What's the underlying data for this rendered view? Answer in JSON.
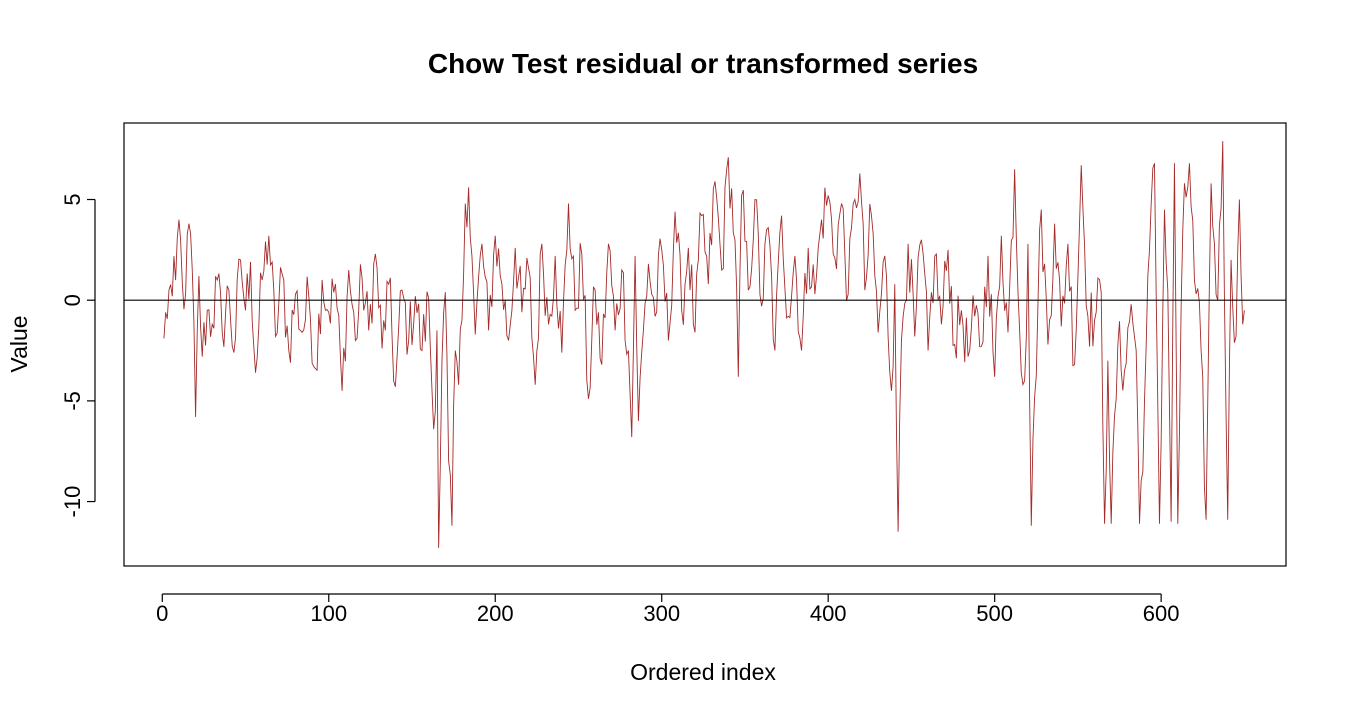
{
  "chart_data": {
    "type": "line",
    "title": "Chow Test residual or transformed series",
    "xlabel": "Ordered index",
    "ylabel": "Value",
    "xlim": [
      -23,
      675
    ],
    "ylim": [
      -13.2,
      8.8
    ],
    "x_ticks": [
      0,
      100,
      200,
      300,
      400,
      500,
      600
    ],
    "x_tick_labels": [
      "0",
      "100",
      "200",
      "300",
      "400",
      "500",
      "600"
    ],
    "y_ticks": [
      5,
      0,
      -5,
      -10
    ],
    "y_tick_labels": [
      "5",
      "0",
      "-5",
      "-10"
    ],
    "reference_line": 0,
    "series": [
      {
        "color": "#a52a2a",
        "x_start": 1,
        "x_step": 1,
        "anchors": [
          [
            1,
            -1.9
          ],
          [
            4,
            0.5
          ],
          [
            6,
            0.2
          ],
          [
            8,
            1.0
          ],
          [
            10,
            4.0
          ],
          [
            12,
            0.9
          ],
          [
            14,
            0.3
          ],
          [
            16,
            3.8
          ],
          [
            18,
            1.5
          ],
          [
            20,
            -5.8
          ],
          [
            22,
            1.2
          ],
          [
            24,
            -2.8
          ],
          [
            27,
            -0.5
          ],
          [
            30,
            -1.2
          ],
          [
            33,
            1.0
          ],
          [
            36,
            -1.6
          ],
          [
            40,
            0.5
          ],
          [
            43,
            -2.6
          ],
          [
            47,
            2.0
          ],
          [
            50,
            -0.5
          ],
          [
            53,
            1.9
          ],
          [
            56,
            -3.6
          ],
          [
            60,
            1.0
          ],
          [
            64,
            3.2
          ],
          [
            68,
            -1.8
          ],
          [
            72,
            1.3
          ],
          [
            76,
            -2.5
          ],
          [
            80,
            0.3
          ],
          [
            84,
            -1.6
          ],
          [
            88,
            0.2
          ],
          [
            92,
            -3.4
          ],
          [
            96,
            1.0
          ],
          [
            100,
            -0.6
          ],
          [
            104,
            0.8
          ],
          [
            108,
            -4.5
          ],
          [
            112,
            1.5
          ],
          [
            116,
            -2.0
          ],
          [
            120,
            1.1
          ],
          [
            124,
            -1.5
          ],
          [
            128,
            2.3
          ],
          [
            132,
            -2.4
          ],
          [
            136,
            0.8
          ],
          [
            140,
            -4.3
          ],
          [
            144,
            0.5
          ],
          [
            148,
            -2.0
          ],
          [
            152,
            0.2
          ],
          [
            156,
            -2.5
          ],
          [
            160,
            0.1
          ],
          [
            163,
            -6.4
          ],
          [
            165,
            -1.5
          ],
          [
            166,
            -12.3
          ],
          [
            168,
            -3.0
          ],
          [
            170,
            0.4
          ],
          [
            172,
            -8.0
          ],
          [
            174,
            -11.2
          ],
          [
            176,
            -2.5
          ],
          [
            178,
            -4.2
          ],
          [
            180,
            -1.0
          ],
          [
            182,
            4.8
          ],
          [
            184,
            5.6
          ],
          [
            186,
            2.2
          ],
          [
            188,
            -1.7
          ],
          [
            192,
            2.8
          ],
          [
            196,
            -1.5
          ],
          [
            200,
            3.2
          ],
          [
            204,
            0.8
          ],
          [
            208,
            -2.0
          ],
          [
            212,
            2.6
          ],
          [
            216,
            -0.6
          ],
          [
            220,
            1.6
          ],
          [
            224,
            -4.2
          ],
          [
            228,
            2.8
          ],
          [
            232,
            -1.2
          ],
          [
            236,
            2.2
          ],
          [
            240,
            -2.6
          ],
          [
            244,
            4.8
          ],
          [
            248,
            -0.5
          ],
          [
            252,
            2.3
          ],
          [
            256,
            -4.9
          ],
          [
            260,
            0.5
          ],
          [
            264,
            -3.2
          ],
          [
            268,
            2.8
          ],
          [
            272,
            -1.5
          ],
          [
            276,
            1.5
          ],
          [
            280,
            -2.5
          ],
          [
            282,
            -6.8
          ],
          [
            284,
            2.2
          ],
          [
            286,
            -6.0
          ],
          [
            289,
            -1.5
          ],
          [
            292,
            1.8
          ],
          [
            296,
            -0.8
          ],
          [
            300,
            2.5
          ],
          [
            304,
            -2.0
          ],
          [
            308,
            4.4
          ],
          [
            312,
            -0.5
          ],
          [
            316,
            2.6
          ],
          [
            320,
            -1.6
          ],
          [
            324,
            4.2
          ],
          [
            328,
            0.8
          ],
          [
            332,
            5.9
          ],
          [
            336,
            1.5
          ],
          [
            340,
            7.1
          ],
          [
            344,
            3.0
          ],
          [
            346,
            -3.8
          ],
          [
            348,
            5.2
          ],
          [
            352,
            0.5
          ],
          [
            356,
            5.0
          ],
          [
            360,
            -0.3
          ],
          [
            364,
            3.6
          ],
          [
            368,
            -2.5
          ],
          [
            372,
            4.2
          ],
          [
            376,
            -0.8
          ],
          [
            380,
            2.2
          ],
          [
            384,
            -2.5
          ],
          [
            388,
            2.6
          ],
          [
            392,
            0.3
          ],
          [
            396,
            4.0
          ],
          [
            400,
            5.2
          ],
          [
            404,
            2.1
          ],
          [
            408,
            4.8
          ],
          [
            412,
            0.3
          ],
          [
            416,
            5.0
          ],
          [
            419,
            6.3
          ],
          [
            422,
            0.5
          ],
          [
            426,
            4.2
          ],
          [
            430,
            -1.6
          ],
          [
            434,
            2.2
          ],
          [
            438,
            -4.5
          ],
          [
            440,
            0.8
          ],
          [
            442,
            -11.5
          ],
          [
            444,
            -2.0
          ],
          [
            448,
            2.8
          ],
          [
            452,
            -1.8
          ],
          [
            456,
            3.0
          ],
          [
            460,
            -2.5
          ],
          [
            464,
            2.2
          ],
          [
            468,
            -1.2
          ],
          [
            472,
            2.5
          ],
          [
            476,
            -2.2
          ],
          [
            480,
            -0.5
          ],
          [
            484,
            -2.8
          ],
          [
            488,
            -0.8
          ],
          [
            492,
            -2.3
          ],
          [
            496,
            2.2
          ],
          [
            500,
            -3.8
          ],
          [
            504,
            3.2
          ],
          [
            508,
            -1.6
          ],
          [
            512,
            6.5
          ],
          [
            515,
            -1.5
          ],
          [
            518,
            -4.0
          ],
          [
            520,
            2.8
          ],
          [
            522,
            -11.2
          ],
          [
            524,
            -4.8
          ],
          [
            528,
            4.5
          ],
          [
            532,
            -2.2
          ],
          [
            536,
            3.8
          ],
          [
            540,
            -1.3
          ],
          [
            544,
            2.8
          ],
          [
            548,
            -3.2
          ],
          [
            552,
            6.7
          ],
          [
            556,
            -0.8
          ],
          [
            560,
            -1.0
          ],
          [
            564,
            0.4
          ],
          [
            566,
            -11.1
          ],
          [
            568,
            -3.0
          ],
          [
            570,
            -11.1
          ],
          [
            574,
            -2.2
          ],
          [
            578,
            -3.5
          ],
          [
            582,
            -0.2
          ],
          [
            585,
            -2.5
          ],
          [
            587,
            -11.1
          ],
          [
            590,
            -5.0
          ],
          [
            593,
            2.5
          ],
          [
            596,
            6.8
          ],
          [
            599,
            -11.1
          ],
          [
            602,
            4.5
          ],
          [
            604,
            0.5
          ],
          [
            606,
            -11.0
          ],
          [
            608,
            6.8
          ],
          [
            610,
            -11.1
          ],
          [
            613,
            3.5
          ],
          [
            617,
            6.8
          ],
          [
            620,
            1.0
          ],
          [
            624,
            -2.5
          ],
          [
            627,
            -10.9
          ],
          [
            630,
            5.8
          ],
          [
            634,
            0.0
          ],
          [
            637,
            7.9
          ],
          [
            640,
            -10.9
          ],
          [
            642,
            2.0
          ],
          [
            645,
            -1.8
          ],
          [
            647,
            5.0
          ],
          [
            649,
            -1.2
          ],
          [
            650,
            -0.5
          ]
        ]
      }
    ]
  }
}
